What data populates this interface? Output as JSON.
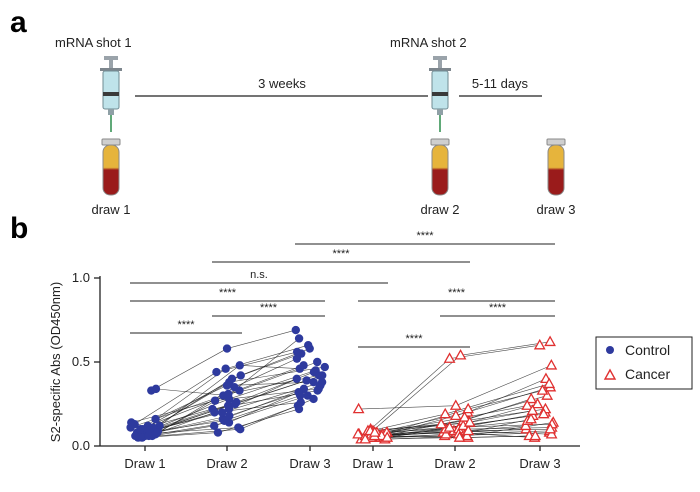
{
  "panel_a": {
    "letter": "a",
    "shot1_label": "mRNA shot 1",
    "shot2_label": "mRNA shot 2",
    "interval1": "3 weeks",
    "interval2": "5-11 days",
    "draw1": "draw 1",
    "draw2": "draw 2",
    "draw3": "draw 3"
  },
  "panel_b": {
    "letter": "b"
  },
  "colors": {
    "control": "#2e3a9e",
    "cancer": "#e03030",
    "line": "#1a1a1a",
    "blood_top": "#e6b43c",
    "blood_bottom": "#9a1b1b",
    "syringe": "#bfe3ea"
  },
  "chart_data": {
    "type": "scatter",
    "ylabel": "S2-specific Abs (OD450nm)",
    "ylim": [
      0,
      1.0
    ],
    "yticks": [
      "0.0",
      "0.5",
      "1.0"
    ],
    "x_tick_labels": [
      "Draw 1",
      "Draw 2",
      "Draw 3",
      "Draw 1",
      "Draw 2",
      "Draw 3"
    ],
    "legend_position": "right",
    "series": [
      {
        "name": "Control",
        "marker": "circle",
        "draws": [
          "Draw 1",
          "Draw 2",
          "Draw 3"
        ],
        "subjects": [
          [
            0.06,
            0.12,
            0.3
          ],
          [
            0.07,
            0.16,
            0.34
          ],
          [
            0.08,
            0.2,
            0.38
          ],
          [
            0.05,
            0.1,
            0.28
          ],
          [
            0.09,
            0.24,
            0.42
          ],
          [
            0.1,
            0.28,
            0.45
          ],
          [
            0.06,
            0.14,
            0.32
          ],
          [
            0.07,
            0.18,
            0.36
          ],
          [
            0.08,
            0.22,
            0.4
          ],
          [
            0.11,
            0.3,
            0.48
          ],
          [
            0.12,
            0.33,
            0.5
          ],
          [
            0.09,
            0.26,
            0.44
          ],
          [
            0.05,
            0.08,
            0.22
          ],
          [
            0.07,
            0.35,
            0.52
          ],
          [
            0.06,
            0.4,
            0.55
          ],
          [
            0.1,
            0.42,
            0.58
          ],
          [
            0.08,
            0.46,
            0.6
          ],
          [
            0.12,
            0.48,
            0.46
          ],
          [
            0.33,
            0.58,
            0.69
          ],
          [
            0.34,
            0.3,
            0.64
          ],
          [
            0.16,
            0.36,
            0.38
          ],
          [
            0.14,
            0.27,
            0.34
          ],
          [
            0.06,
            0.2,
            0.26
          ],
          [
            0.09,
            0.15,
            0.3
          ],
          [
            0.07,
            0.11,
            0.24
          ],
          [
            0.11,
            0.38,
            0.47
          ],
          [
            0.13,
            0.44,
            0.56
          ],
          [
            0.08,
            0.31,
            0.42
          ],
          [
            0.06,
            0.25,
            0.39
          ],
          [
            0.1,
            0.22,
            0.33
          ]
        ]
      },
      {
        "name": "Cancer",
        "marker": "triangle",
        "draws": [
          "Draw 1",
          "Draw 2",
          "Draw 3"
        ],
        "subjects": [
          [
            0.05,
            0.06,
            0.08
          ],
          [
            0.06,
            0.08,
            0.1
          ],
          [
            0.07,
            0.09,
            0.12
          ],
          [
            0.04,
            0.07,
            0.09
          ],
          [
            0.05,
            0.1,
            0.15
          ],
          [
            0.08,
            0.12,
            0.18
          ],
          [
            0.06,
            0.05,
            0.06
          ],
          [
            0.07,
            0.11,
            0.2
          ],
          [
            0.09,
            0.14,
            0.25
          ],
          [
            0.05,
            0.16,
            0.3
          ],
          [
            0.06,
            0.18,
            0.35
          ],
          [
            0.08,
            0.2,
            0.4
          ],
          [
            0.22,
            0.24,
            0.48
          ],
          [
            0.1,
            0.52,
            0.6
          ],
          [
            0.07,
            0.54,
            0.62
          ],
          [
            0.06,
            0.08,
            0.05
          ],
          [
            0.05,
            0.09,
            0.07
          ],
          [
            0.09,
            0.13,
            0.22
          ],
          [
            0.04,
            0.06,
            0.14
          ],
          [
            0.07,
            0.22,
            0.33
          ],
          [
            0.06,
            0.1,
            0.11
          ],
          [
            0.08,
            0.15,
            0.28
          ],
          [
            0.05,
            0.07,
            0.16
          ],
          [
            0.06,
            0.12,
            0.19
          ],
          [
            0.07,
            0.17,
            0.24
          ],
          [
            0.05,
            0.11,
            0.13
          ],
          [
            0.09,
            0.19,
            0.37
          ],
          [
            0.06,
            0.09,
            0.1
          ],
          [
            0.08,
            0.14,
            0.21
          ],
          [
            0.04,
            0.05,
            0.06
          ]
        ]
      }
    ],
    "significance_brackets": [
      {
        "from": "Control Draw 1",
        "to": "Cancer Draw 1",
        "label": "n.s."
      },
      {
        "from": "Control Draw 1",
        "to": "Control Draw 2",
        "label": "****"
      },
      {
        "from": "Control Draw 1",
        "to": "Control Draw 3",
        "label": "****"
      },
      {
        "from": "Control Draw 2",
        "to": "Control Draw 3",
        "label": "****"
      },
      {
        "from": "Control Draw 2",
        "to": "Cancer Draw 2",
        "label": "****"
      },
      {
        "from": "Control Draw 3",
        "to": "Cancer Draw 3",
        "label": "****"
      },
      {
        "from": "Cancer Draw 1",
        "to": "Cancer Draw 2",
        "label": "****"
      },
      {
        "from": "Cancer Draw 1",
        "to": "Cancer Draw 3",
        "label": "****"
      },
      {
        "from": "Cancer Draw 2",
        "to": "Cancer Draw 3",
        "label": "****"
      }
    ]
  }
}
